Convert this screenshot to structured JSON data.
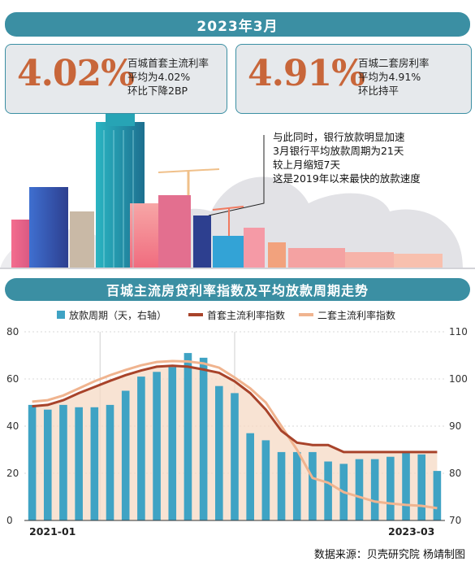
{
  "header": {
    "title": "2023年3月"
  },
  "stats": [
    {
      "value": "4.02%",
      "lines": [
        "百城首套主流利率",
        "平均为4.02%",
        "环比下降2BP"
      ]
    },
    {
      "value": "4.91%",
      "lines": [
        "百城二套房利率",
        "平均为4.91%",
        "环比持平"
      ]
    }
  ],
  "note": {
    "lines": [
      "与此同时，银行放款明显加速",
      "3月银行平均放款周期为21天",
      "较上月缩短7天",
      "这是2019年以来最快的放款速度"
    ]
  },
  "colors": {
    "accent": "#3b8fa3",
    "bar": "#3fa3c4",
    "first_line": "#a8432a",
    "second_line": "#f0b48f",
    "stat_value": "#c8663a"
  },
  "chart_data": {
    "type": "bar+line",
    "title": "百城主流房贷利率指数及平均放款周期走势",
    "x": [
      "2021-01",
      "2021-02",
      "2021-03",
      "2021-04",
      "2021-05",
      "2021-06",
      "2021-07",
      "2021-08",
      "2021-09",
      "2021-10",
      "2021-11",
      "2021-12",
      "2022-01",
      "2022-02",
      "2022-03",
      "2022-04",
      "2022-05",
      "2022-06",
      "2022-07",
      "2022-08",
      "2022-09",
      "2022-10",
      "2022-11",
      "2022-12",
      "2023-01",
      "2023-02",
      "2023-03"
    ],
    "x_tick_labels": [
      "2021-01",
      "2023-03"
    ],
    "series": [
      {
        "name": "放款周期（天，右轴）",
        "type": "bar",
        "axis": "left",
        "values": [
          49,
          47,
          49,
          48,
          48,
          49,
          55,
          61,
          63,
          65,
          71,
          69,
          57,
          54,
          37,
          34,
          29,
          29,
          29,
          25,
          24,
          26,
          26,
          27,
          29,
          28,
          21
        ]
      },
      {
        "name": "首套主流利率指数",
        "type": "line",
        "axis": "right",
        "values": [
          94.2,
          94.5,
          95.5,
          97,
          98.3,
          99.6,
          100.8,
          101.8,
          102.6,
          102.8,
          102.6,
          102,
          101.3,
          99.5,
          97,
          93.5,
          89,
          86.5,
          86,
          86,
          84.5,
          84.5,
          84.5,
          84.5,
          84.5,
          84.5,
          84.5
        ]
      },
      {
        "name": "二套主流利率指数",
        "type": "line",
        "axis": "right",
        "values": [
          95.2,
          95.5,
          96.5,
          98,
          99.5,
          100.8,
          101.9,
          102.9,
          103.6,
          103.8,
          103.7,
          103.3,
          102.4,
          100.3,
          98,
          95,
          90,
          85,
          79,
          78,
          76,
          75,
          74,
          73.6,
          73.3,
          73.1,
          72.6
        ]
      }
    ],
    "y_left": {
      "ticks": [
        "80",
        "60",
        "40",
        "20",
        "0"
      ],
      "range": [
        0,
        80
      ]
    },
    "y_right": {
      "ticks": [
        "110",
        "100",
        "90",
        "80",
        "70"
      ],
      "range": [
        70,
        110
      ]
    },
    "legend_position": "top"
  },
  "source": "数据来源：贝壳研究院  杨靖制图"
}
